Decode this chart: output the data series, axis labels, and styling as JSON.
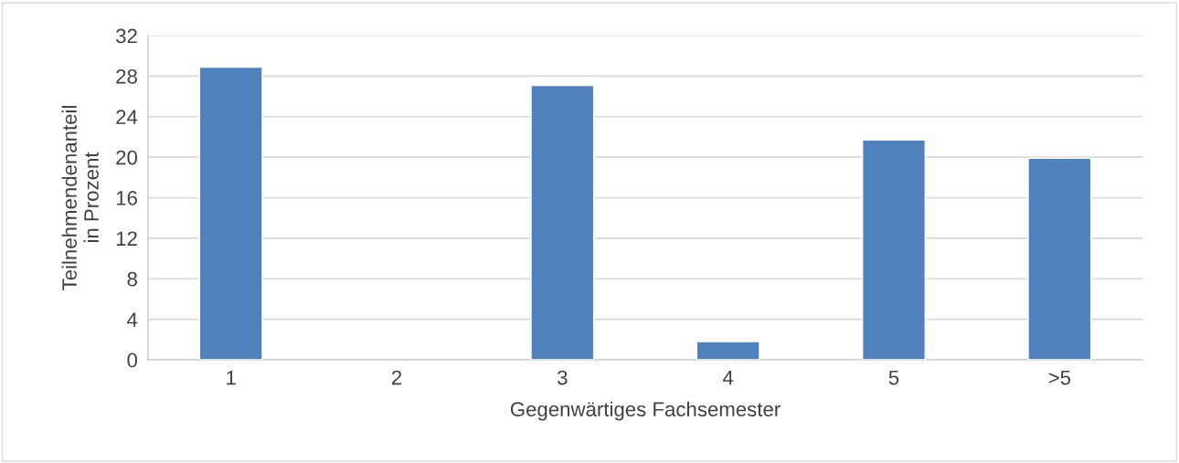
{
  "chart_data": {
    "type": "bar",
    "xlabel": "Gegenwärtiges Fachsemester",
    "ylabel": "Teilnehmendenanteil\nin Prozent",
    "categories": [
      "1",
      "2",
      "3",
      "4",
      "5",
      ">5"
    ],
    "values": [
      28.9,
      0,
      27.1,
      1.8,
      21.7,
      19.9
    ],
    "color": "#4f81bd",
    "ylim": [
      0,
      32
    ],
    "yticks": [
      0,
      4,
      8,
      12,
      16,
      20,
      24,
      28,
      32
    ],
    "grid": "y"
  }
}
